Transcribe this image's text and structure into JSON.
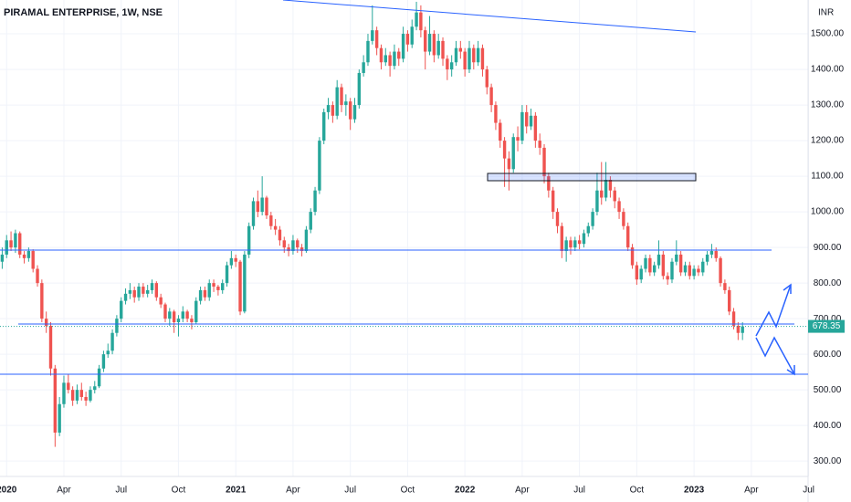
{
  "chart_data": {
    "type": "candlestick",
    "title": "PIRAMAL ENTERPRISE, 1W, NSE",
    "currency": "INR",
    "up_color": "#26a69a",
    "down_color": "#ef5350",
    "grid": true,
    "ylim": [
      262,
      1595
    ],
    "yticks": [
      {
        "value": 300,
        "label": "300.00"
      },
      {
        "value": 400,
        "label": "400.00"
      },
      {
        "value": 500,
        "label": "500.00"
      },
      {
        "value": 600,
        "label": "600.00"
      },
      {
        "value": 700,
        "label": "700.00"
      },
      {
        "value": 800,
        "label": "800.00"
      },
      {
        "value": 900,
        "label": "900.00"
      },
      {
        "value": 1000,
        "label": "1000.00"
      },
      {
        "value": 1100,
        "label": "1100.00"
      },
      {
        "value": 1200,
        "label": "1200.00"
      },
      {
        "value": 1300,
        "label": "1300.00"
      },
      {
        "value": 1400,
        "label": "1400.00"
      },
      {
        "value": 1500,
        "label": "1500.00"
      }
    ],
    "xlim": [
      -0.5,
      183.5
    ],
    "xticks": [
      {
        "value": 1,
        "label": "2020"
      },
      {
        "value": 14,
        "label": "Apr"
      },
      {
        "value": 27,
        "label": "Jul"
      },
      {
        "value": 40,
        "label": "Oct"
      },
      {
        "value": 53,
        "label": "2021"
      },
      {
        "value": 66,
        "label": "Apr"
      },
      {
        "value": 79,
        "label": "Jul"
      },
      {
        "value": 92,
        "label": "Oct"
      },
      {
        "value": 105,
        "label": "2022"
      },
      {
        "value": 118,
        "label": "Apr"
      },
      {
        "value": 131,
        "label": "Jul"
      },
      {
        "value": 144,
        "label": "Oct"
      },
      {
        "value": 157,
        "label": "2023"
      },
      {
        "value": 170,
        "label": "Apr"
      },
      {
        "value": 183,
        "label": "Jul"
      }
    ],
    "ohlc": [
      [
        860,
        900,
        840,
        880
      ],
      [
        880,
        935,
        870,
        920
      ],
      [
        920,
        945,
        890,
        900
      ],
      [
        900,
        950,
        885,
        940
      ],
      [
        940,
        945,
        870,
        880
      ],
      [
        880,
        890,
        855,
        870
      ],
      [
        870,
        900,
        860,
        890
      ],
      [
        890,
        895,
        830,
        840
      ],
      [
        840,
        850,
        790,
        800
      ],
      [
        800,
        810,
        690,
        700
      ],
      [
        700,
        720,
        660,
        680
      ],
      [
        680,
        690,
        540,
        560
      ],
      [
        560,
        570,
        340,
        380
      ],
      [
        380,
        480,
        370,
        460
      ],
      [
        460,
        540,
        450,
        520
      ],
      [
        520,
        545,
        490,
        500
      ],
      [
        500,
        510,
        455,
        470
      ],
      [
        470,
        515,
        460,
        500
      ],
      [
        500,
        520,
        470,
        480
      ],
      [
        480,
        495,
        455,
        470
      ],
      [
        470,
        510,
        465,
        500
      ],
      [
        500,
        525,
        490,
        510
      ],
      [
        510,
        570,
        505,
        560
      ],
      [
        560,
        610,
        550,
        600
      ],
      [
        600,
        630,
        590,
        610
      ],
      [
        610,
        670,
        600,
        660
      ],
      [
        660,
        710,
        650,
        700
      ],
      [
        700,
        760,
        690,
        750
      ],
      [
        750,
        785,
        740,
        770
      ],
      [
        770,
        800,
        755,
        780
      ],
      [
        780,
        790,
        745,
        760
      ],
      [
        760,
        800,
        750,
        790
      ],
      [
        790,
        800,
        760,
        770
      ],
      [
        770,
        795,
        760,
        780
      ],
      [
        780,
        810,
        770,
        800
      ],
      [
        800,
        805,
        750,
        760
      ],
      [
        760,
        770,
        730,
        740
      ],
      [
        740,
        745,
        690,
        700
      ],
      [
        700,
        730,
        680,
        720
      ],
      [
        720,
        725,
        660,
        690
      ],
      [
        690,
        710,
        650,
        700
      ],
      [
        700,
        735,
        690,
        720
      ],
      [
        720,
        725,
        690,
        700
      ],
      [
        700,
        710,
        670,
        690
      ],
      [
        690,
        760,
        685,
        750
      ],
      [
        750,
        790,
        740,
        780
      ],
      [
        780,
        790,
        750,
        760
      ],
      [
        760,
        810,
        750,
        800
      ],
      [
        800,
        810,
        775,
        790
      ],
      [
        790,
        795,
        765,
        780
      ],
      [
        780,
        810,
        770,
        800
      ],
      [
        800,
        860,
        790,
        850
      ],
      [
        850,
        890,
        840,
        870
      ],
      [
        870,
        880,
        845,
        860
      ],
      [
        860,
        865,
        710,
        720
      ],
      [
        720,
        890,
        715,
        880
      ],
      [
        880,
        970,
        870,
        960
      ],
      [
        960,
        1040,
        950,
        1030
      ],
      [
        1030,
        1060,
        985,
        1000
      ],
      [
        1000,
        1100,
        990,
        1040
      ],
      [
        1040,
        1045,
        980,
        990
      ],
      [
        990,
        1000,
        950,
        960
      ],
      [
        960,
        980,
        935,
        950
      ],
      [
        950,
        960,
        905,
        920
      ],
      [
        920,
        930,
        885,
        900
      ],
      [
        900,
        910,
        875,
        890
      ],
      [
        890,
        935,
        880,
        920
      ],
      [
        920,
        925,
        885,
        900
      ],
      [
        900,
        910,
        875,
        890
      ],
      [
        890,
        960,
        885,
        950
      ],
      [
        950,
        1010,
        940,
        1000
      ],
      [
        1000,
        1070,
        990,
        1060
      ],
      [
        1060,
        1210,
        1050,
        1200
      ],
      [
        1200,
        1290,
        1190,
        1280
      ],
      [
        1280,
        1320,
        1260,
        1300
      ],
      [
        1300,
        1310,
        1250,
        1270
      ],
      [
        1270,
        1370,
        1260,
        1350
      ],
      [
        1350,
        1360,
        1280,
        1300
      ],
      [
        1300,
        1330,
        1270,
        1310
      ],
      [
        1310,
        1320,
        1230,
        1260
      ],
      [
        1260,
        1320,
        1250,
        1300
      ],
      [
        1300,
        1400,
        1290,
        1390
      ],
      [
        1390,
        1440,
        1380,
        1420
      ],
      [
        1420,
        1500,
        1410,
        1480
      ],
      [
        1480,
        1580,
        1470,
        1510
      ],
      [
        1510,
        1520,
        1440,
        1460
      ],
      [
        1460,
        1470,
        1400,
        1420
      ],
      [
        1420,
        1460,
        1410,
        1440
      ],
      [
        1440,
        1450,
        1380,
        1410
      ],
      [
        1410,
        1470,
        1400,
        1450
      ],
      [
        1450,
        1460,
        1410,
        1430
      ],
      [
        1430,
        1520,
        1420,
        1500
      ],
      [
        1500,
        1510,
        1450,
        1470
      ],
      [
        1470,
        1540,
        1460,
        1520
      ],
      [
        1520,
        1590,
        1510,
        1560
      ],
      [
        1560,
        1580,
        1490,
        1510
      ],
      [
        1510,
        1520,
        1400,
        1450
      ],
      [
        1450,
        1550,
        1440,
        1500
      ],
      [
        1500,
        1510,
        1420,
        1440
      ],
      [
        1440,
        1500,
        1430,
        1480
      ],
      [
        1480,
        1490,
        1410,
        1430
      ],
      [
        1430,
        1440,
        1370,
        1400
      ],
      [
        1400,
        1440,
        1380,
        1420
      ],
      [
        1420,
        1480,
        1410,
        1460
      ],
      [
        1460,
        1480,
        1430,
        1450
      ],
      [
        1450,
        1460,
        1380,
        1400
      ],
      [
        1400,
        1480,
        1390,
        1460
      ],
      [
        1460,
        1470,
        1400,
        1420
      ],
      [
        1420,
        1480,
        1410,
        1460
      ],
      [
        1460,
        1470,
        1380,
        1400
      ],
      [
        1400,
        1410,
        1330,
        1350
      ],
      [
        1350,
        1360,
        1280,
        1300
      ],
      [
        1300,
        1310,
        1230,
        1250
      ],
      [
        1250,
        1260,
        1180,
        1200
      ],
      [
        1200,
        1210,
        1070,
        1150
      ],
      [
        1150,
        1170,
        1060,
        1120
      ],
      [
        1120,
        1220,
        1110,
        1210
      ],
      [
        1210,
        1240,
        1170,
        1200
      ],
      [
        1200,
        1300,
        1190,
        1280
      ],
      [
        1280,
        1300,
        1220,
        1240
      ],
      [
        1240,
        1290,
        1230,
        1270
      ],
      [
        1270,
        1280,
        1180,
        1200
      ],
      [
        1200,
        1220,
        1160,
        1180
      ],
      [
        1180,
        1190,
        1080,
        1100
      ],
      [
        1100,
        1110,
        1040,
        1060
      ],
      [
        1060,
        1070,
        980,
        1000
      ],
      [
        1000,
        1010,
        940,
        960
      ],
      [
        960,
        970,
        870,
        890
      ],
      [
        890,
        930,
        860,
        920
      ],
      [
        920,
        930,
        880,
        900
      ],
      [
        900,
        930,
        890,
        920
      ],
      [
        920,
        935,
        895,
        910
      ],
      [
        910,
        950,
        900,
        940
      ],
      [
        940,
        970,
        930,
        960
      ],
      [
        960,
        1010,
        950,
        1000
      ],
      [
        1000,
        1110,
        990,
        1060
      ],
      [
        1060,
        1140,
        1020,
        1040
      ],
      [
        1040,
        1140,
        1030,
        1090
      ],
      [
        1090,
        1100,
        1040,
        1060
      ],
      [
        1060,
        1070,
        1010,
        1030
      ],
      [
        1030,
        1040,
        980,
        1000
      ],
      [
        1000,
        1010,
        950,
        960
      ],
      [
        960,
        970,
        890,
        900
      ],
      [
        900,
        910,
        840,
        850
      ],
      [
        850,
        860,
        795,
        810
      ],
      [
        810,
        850,
        800,
        840
      ],
      [
        840,
        880,
        830,
        870
      ],
      [
        870,
        880,
        820,
        830
      ],
      [
        830,
        860,
        820,
        850
      ],
      [
        850,
        920,
        840,
        880
      ],
      [
        880,
        890,
        810,
        820
      ],
      [
        820,
        830,
        795,
        810
      ],
      [
        810,
        870,
        800,
        860
      ],
      [
        860,
        920,
        850,
        880
      ],
      [
        880,
        890,
        820,
        830
      ],
      [
        830,
        860,
        820,
        850
      ],
      [
        850,
        860,
        810,
        820
      ],
      [
        820,
        850,
        810,
        840
      ],
      [
        840,
        850,
        820,
        830
      ],
      [
        830,
        870,
        820,
        860
      ],
      [
        860,
        890,
        850,
        880
      ],
      [
        880,
        910,
        870,
        890
      ],
      [
        890,
        900,
        860,
        870
      ],
      [
        870,
        875,
        790,
        800
      ],
      [
        800,
        810,
        770,
        780
      ],
      [
        780,
        790,
        710,
        720
      ],
      [
        720,
        730,
        670,
        680
      ],
      [
        680,
        690,
        640,
        660
      ],
      [
        660,
        690,
        640,
        678.35
      ]
    ]
  }
}
